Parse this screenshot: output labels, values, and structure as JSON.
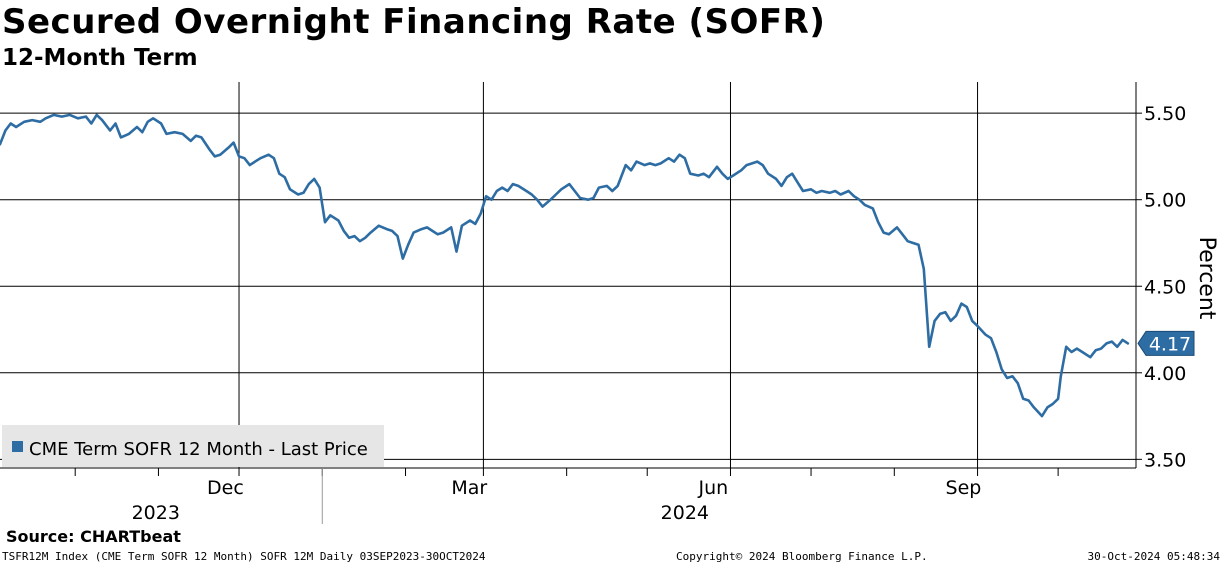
{
  "chart_data": {
    "type": "line",
    "title": "Secured Overnight Financing Rate (SOFR)",
    "subtitle": "12-Month Term",
    "ylabel": "Percent",
    "ylim": [
      3.45,
      5.68
    ],
    "yticks": [
      3.5,
      4.0,
      4.5,
      5.0,
      5.5
    ],
    "ytick_labels": [
      "3.50",
      "4.00",
      "4.50",
      "5.00",
      "5.50"
    ],
    "xticks": [
      {
        "date": "2023-09-01",
        "label": "Sep"
      },
      {
        "date": "2023-12-01",
        "label": "Dec"
      },
      {
        "date": "2024-03-01",
        "label": "Mar"
      },
      {
        "date": "2024-06-01",
        "label": "Jun"
      },
      {
        "date": "2024-09-01",
        "label": "Sep"
      }
    ],
    "year_labels": [
      {
        "date": "2023-10-31",
        "label": "2023"
      },
      {
        "date": "2024-05-15",
        "label": "2024"
      }
    ],
    "xlim": [
      "2023-09-03",
      "2024-10-30"
    ],
    "grid": true,
    "legend_position": "bottom-left",
    "last_value_label": "4.17",
    "series": [
      {
        "name": "CME Term SOFR 12 Month - Last Price",
        "color": "#2e6da4",
        "points": [
          [
            "2023-09-03",
            5.32
          ],
          [
            "2023-09-05",
            5.4
          ],
          [
            "2023-09-07",
            5.44
          ],
          [
            "2023-09-09",
            5.42
          ],
          [
            "2023-09-12",
            5.45
          ],
          [
            "2023-09-15",
            5.46
          ],
          [
            "2023-09-18",
            5.45
          ],
          [
            "2023-09-20",
            5.47
          ],
          [
            "2023-09-23",
            5.49
          ],
          [
            "2023-09-26",
            5.48
          ],
          [
            "2023-09-29",
            5.49
          ],
          [
            "2023-10-02",
            5.47
          ],
          [
            "2023-10-05",
            5.48
          ],
          [
            "2023-10-07",
            5.44
          ],
          [
            "2023-10-09",
            5.49
          ],
          [
            "2023-10-11",
            5.46
          ],
          [
            "2023-10-14",
            5.4
          ],
          [
            "2023-10-16",
            5.44
          ],
          [
            "2023-10-18",
            5.36
          ],
          [
            "2023-10-21",
            5.38
          ],
          [
            "2023-10-24",
            5.42
          ],
          [
            "2023-10-26",
            5.39
          ],
          [
            "2023-10-28",
            5.45
          ],
          [
            "2023-10-30",
            5.47
          ],
          [
            "2023-11-02",
            5.44
          ],
          [
            "2023-11-04",
            5.38
          ],
          [
            "2023-11-07",
            5.39
          ],
          [
            "2023-11-10",
            5.38
          ],
          [
            "2023-11-13",
            5.34
          ],
          [
            "2023-11-15",
            5.37
          ],
          [
            "2023-11-17",
            5.36
          ],
          [
            "2023-11-20",
            5.29
          ],
          [
            "2023-11-22",
            5.25
          ],
          [
            "2023-11-24",
            5.26
          ],
          [
            "2023-11-27",
            5.3
          ],
          [
            "2023-11-29",
            5.33
          ],
          [
            "2023-12-01",
            5.25
          ],
          [
            "2023-12-03",
            5.24
          ],
          [
            "2023-12-05",
            5.2
          ],
          [
            "2023-12-07",
            5.22
          ],
          [
            "2023-12-09",
            5.24
          ],
          [
            "2023-12-12",
            5.26
          ],
          [
            "2023-12-14",
            5.24
          ],
          [
            "2023-12-16",
            5.15
          ],
          [
            "2023-12-18",
            5.13
          ],
          [
            "2023-12-20",
            5.06
          ],
          [
            "2023-12-23",
            5.03
          ],
          [
            "2023-12-25",
            5.04
          ],
          [
            "2023-12-27",
            5.09
          ],
          [
            "2023-12-29",
            5.12
          ],
          [
            "2023-12-31",
            5.07
          ],
          [
            "2024-01-02",
            4.87
          ],
          [
            "2024-01-04",
            4.91
          ],
          [
            "2024-01-07",
            4.88
          ],
          [
            "2024-01-09",
            4.82
          ],
          [
            "2024-01-11",
            4.78
          ],
          [
            "2024-01-13",
            4.79
          ],
          [
            "2024-01-15",
            4.76
          ],
          [
            "2024-01-17",
            4.78
          ],
          [
            "2024-01-19",
            4.81
          ],
          [
            "2024-01-22",
            4.85
          ],
          [
            "2024-01-25",
            4.83
          ],
          [
            "2024-01-27",
            4.82
          ],
          [
            "2024-01-29",
            4.79
          ],
          [
            "2024-01-31",
            4.66
          ],
          [
            "2024-02-02",
            4.74
          ],
          [
            "2024-02-04",
            4.81
          ],
          [
            "2024-02-07",
            4.83
          ],
          [
            "2024-02-09",
            4.84
          ],
          [
            "2024-02-11",
            4.82
          ],
          [
            "2024-02-13",
            4.8
          ],
          [
            "2024-02-15",
            4.81
          ],
          [
            "2024-02-18",
            4.84
          ],
          [
            "2024-02-20",
            4.7
          ],
          [
            "2024-02-22",
            4.85
          ],
          [
            "2024-02-25",
            4.88
          ],
          [
            "2024-02-27",
            4.86
          ],
          [
            "2024-02-29",
            4.92
          ],
          [
            "2024-03-02",
            5.02
          ],
          [
            "2024-03-04",
            5.0
          ],
          [
            "2024-03-06",
            5.05
          ],
          [
            "2024-03-08",
            5.07
          ],
          [
            "2024-03-10",
            5.05
          ],
          [
            "2024-03-12",
            5.09
          ],
          [
            "2024-03-14",
            5.08
          ],
          [
            "2024-03-17",
            5.05
          ],
          [
            "2024-03-19",
            5.03
          ],
          [
            "2024-03-21",
            5.0
          ],
          [
            "2024-03-23",
            4.96
          ],
          [
            "2024-03-26",
            5.0
          ],
          [
            "2024-03-28",
            5.03
          ],
          [
            "2024-03-30",
            5.06
          ],
          [
            "2024-04-02",
            5.09
          ],
          [
            "2024-04-04",
            5.05
          ],
          [
            "2024-04-06",
            5.01
          ],
          [
            "2024-04-09",
            5.0
          ],
          [
            "2024-04-11",
            5.01
          ],
          [
            "2024-04-13",
            5.07
          ],
          [
            "2024-04-16",
            5.08
          ],
          [
            "2024-04-18",
            5.05
          ],
          [
            "2024-04-20",
            5.08
          ],
          [
            "2024-04-23",
            5.2
          ],
          [
            "2024-04-25",
            5.17
          ],
          [
            "2024-04-27",
            5.22
          ],
          [
            "2024-04-30",
            5.2
          ],
          [
            "2024-05-02",
            5.21
          ],
          [
            "2024-05-04",
            5.2
          ],
          [
            "2024-05-06",
            5.21
          ],
          [
            "2024-05-09",
            5.24
          ],
          [
            "2024-05-11",
            5.22
          ],
          [
            "2024-05-13",
            5.26
          ],
          [
            "2024-05-15",
            5.24
          ],
          [
            "2024-05-17",
            5.15
          ],
          [
            "2024-05-20",
            5.14
          ],
          [
            "2024-05-22",
            5.15
          ],
          [
            "2024-05-24",
            5.13
          ],
          [
            "2024-05-27",
            5.19
          ],
          [
            "2024-05-29",
            5.15
          ],
          [
            "2024-05-31",
            5.12
          ],
          [
            "2024-06-02",
            5.14
          ],
          [
            "2024-06-05",
            5.17
          ],
          [
            "2024-06-07",
            5.2
          ],
          [
            "2024-06-09",
            5.21
          ],
          [
            "2024-06-11",
            5.22
          ],
          [
            "2024-06-13",
            5.2
          ],
          [
            "2024-06-15",
            5.15
          ],
          [
            "2024-06-18",
            5.12
          ],
          [
            "2024-06-20",
            5.08
          ],
          [
            "2024-06-22",
            5.13
          ],
          [
            "2024-06-24",
            5.15
          ],
          [
            "2024-06-26",
            5.1
          ],
          [
            "2024-06-28",
            5.05
          ],
          [
            "2024-07-01",
            5.06
          ],
          [
            "2024-07-03",
            5.04
          ],
          [
            "2024-07-05",
            5.05
          ],
          [
            "2024-07-08",
            5.04
          ],
          [
            "2024-07-10",
            5.05
          ],
          [
            "2024-07-12",
            5.03
          ],
          [
            "2024-07-15",
            5.05
          ],
          [
            "2024-07-17",
            5.02
          ],
          [
            "2024-07-19",
            5.0
          ],
          [
            "2024-07-21",
            4.97
          ],
          [
            "2024-07-24",
            4.95
          ],
          [
            "2024-07-26",
            4.87
          ],
          [
            "2024-07-28",
            4.81
          ],
          [
            "2024-07-30",
            4.8
          ],
          [
            "2024-08-02",
            4.84
          ],
          [
            "2024-08-04",
            4.8
          ],
          [
            "2024-08-06",
            4.76
          ],
          [
            "2024-08-08",
            4.75
          ],
          [
            "2024-08-10",
            4.74
          ],
          [
            "2024-08-12",
            4.6
          ],
          [
            "2024-08-14",
            4.15
          ],
          [
            "2024-08-16",
            4.3
          ],
          [
            "2024-08-18",
            4.34
          ],
          [
            "2024-08-20",
            4.35
          ],
          [
            "2024-08-22",
            4.3
          ],
          [
            "2024-08-24",
            4.33
          ],
          [
            "2024-08-26",
            4.4
          ],
          [
            "2024-08-28",
            4.38
          ],
          [
            "2024-08-30",
            4.3
          ],
          [
            "2024-09-01",
            4.27
          ],
          [
            "2024-09-04",
            4.22
          ],
          [
            "2024-09-06",
            4.2
          ],
          [
            "2024-09-08",
            4.12
          ],
          [
            "2024-09-10",
            4.02
          ],
          [
            "2024-09-12",
            3.97
          ],
          [
            "2024-09-14",
            3.98
          ],
          [
            "2024-09-16",
            3.94
          ],
          [
            "2024-09-18",
            3.85
          ],
          [
            "2024-09-20",
            3.84
          ],
          [
            "2024-09-22",
            3.8
          ],
          [
            "2024-09-25",
            3.75
          ],
          [
            "2024-09-27",
            3.8
          ],
          [
            "2024-09-29",
            3.82
          ],
          [
            "2024-10-01",
            3.85
          ],
          [
            "2024-10-02",
            3.98
          ],
          [
            "2024-10-04",
            4.15
          ],
          [
            "2024-10-06",
            4.12
          ],
          [
            "2024-10-08",
            4.14
          ],
          [
            "2024-10-10",
            4.12
          ],
          [
            "2024-10-13",
            4.09
          ],
          [
            "2024-10-15",
            4.13
          ],
          [
            "2024-10-17",
            4.14
          ],
          [
            "2024-10-19",
            4.17
          ],
          [
            "2024-10-21",
            4.18
          ],
          [
            "2024-10-23",
            4.15
          ],
          [
            "2024-10-25",
            4.19
          ],
          [
            "2024-10-27",
            4.17
          ]
        ]
      }
    ]
  },
  "source_label": "Source: CHARTbeat",
  "footer": {
    "left": "TSFR12M Index (CME Term SOFR 12 Month) SOFR 12M  Daily 03SEP2023-30OCT2024",
    "center": "Copyright© 2024 Bloomberg Finance L.P.",
    "right": "30-Oct-2024 05:48:34"
  },
  "colors": {
    "line": "#2e6da4",
    "grid": "#000000",
    "legend_bg": "#e6e6e6",
    "badge_bg": "#2e6da4"
  }
}
